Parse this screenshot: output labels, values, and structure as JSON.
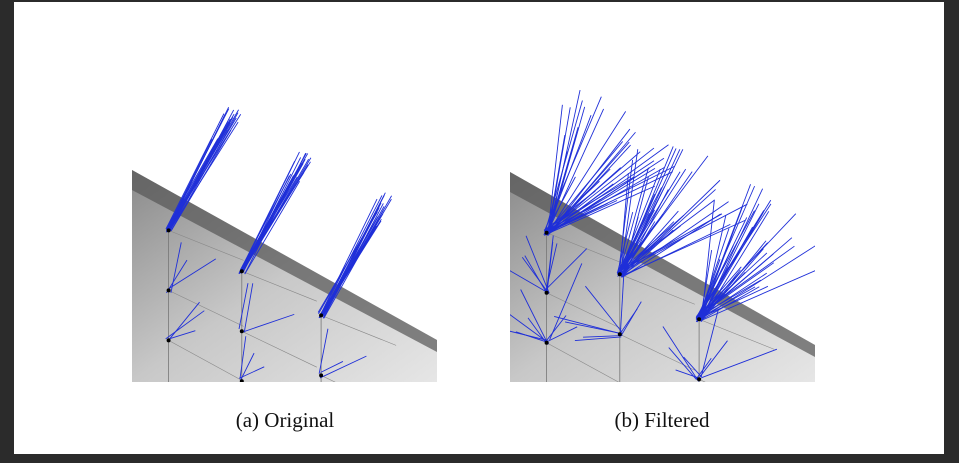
{
  "figures": [
    {
      "caption": "(a) Original"
    },
    {
      "caption": "(b) Filtered"
    }
  ]
}
